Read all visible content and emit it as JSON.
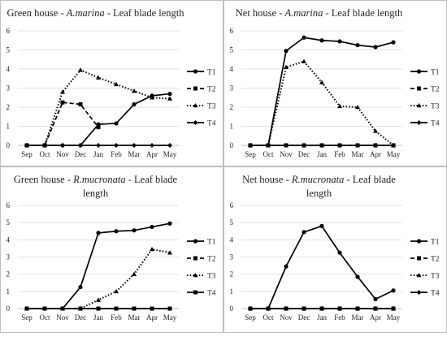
{
  "chart_data": [
    {
      "type": "line",
      "title": [
        "Green house - ",
        "A.marina",
        " - Leaf blade length"
      ],
      "title_italic": [
        false,
        true,
        false
      ],
      "title_line2": "",
      "categories": [
        "Sep",
        "Oct",
        "Nov",
        "Dec",
        "Jan",
        "Feb",
        "Mar",
        "Apr",
        "May"
      ],
      "ylim": [
        0,
        6
      ],
      "yticks": [
        "0",
        "1",
        "2",
        "3",
        "4",
        "5",
        "6"
      ],
      "grid": true,
      "legend": "right",
      "series": [
        {
          "name": "T1",
          "style": "solid",
          "marker": "circle",
          "values": [
            0,
            0,
            0,
            0,
            1.1,
            1.15,
            2.15,
            2.6,
            2.7
          ]
        },
        {
          "name": "T2",
          "style": "dashed",
          "marker": "square",
          "values": [
            0,
            0,
            2.25,
            2.15,
            0.95,
            null,
            null,
            null,
            null
          ]
        },
        {
          "name": "T3",
          "style": "dotted",
          "marker": "triangle",
          "values": [
            0,
            0,
            2.8,
            3.95,
            3.55,
            3.2,
            2.85,
            2.5,
            2.45
          ]
        },
        {
          "name": "T4",
          "style": "solid",
          "marker": "diamond",
          "values": [
            0,
            0,
            0,
            0,
            0,
            0,
            0,
            0,
            0
          ]
        }
      ]
    },
    {
      "type": "line",
      "title": [
        "Net house - ",
        "A.marina",
        " - Leaf blade length"
      ],
      "title_italic": [
        false,
        true,
        false
      ],
      "title_line2": "",
      "categories": [
        "Sep",
        "Oct",
        "Nov",
        "Dec",
        "Jan",
        "Feb",
        "Mar",
        "Apr",
        "May"
      ],
      "ylim": [
        0,
        6
      ],
      "yticks": [
        "0",
        "1",
        "2",
        "3",
        "4",
        "5",
        "6"
      ],
      "grid": true,
      "legend": "right",
      "series": [
        {
          "name": "T1",
          "style": "solid",
          "marker": "circle",
          "values": [
            0,
            0,
            4.95,
            5.65,
            5.5,
            5.45,
            5.25,
            5.15,
            5.4
          ]
        },
        {
          "name": "T2",
          "style": "dashed",
          "marker": "square",
          "values": [
            0,
            0,
            0,
            0,
            0,
            0,
            0,
            0,
            0
          ]
        },
        {
          "name": "T3",
          "style": "dotted",
          "marker": "triangle",
          "values": [
            0,
            0,
            4.1,
            4.4,
            3.3,
            2.05,
            2.0,
            0.75,
            0
          ]
        },
        {
          "name": "T4",
          "style": "solid",
          "marker": "diamond",
          "values": [
            0,
            0,
            0,
            0,
            0,
            0,
            0,
            0,
            0
          ]
        }
      ]
    },
    {
      "type": "line",
      "title": [
        "Green house - ",
        "R.mucronata",
        " - Leaf blade"
      ],
      "title_italic": [
        false,
        true,
        false
      ],
      "title_line2": "length",
      "categories": [
        "Sep",
        "Oct",
        "Nov",
        "Dec",
        "Jan",
        "Feb",
        "Mar",
        "Apr",
        "May"
      ],
      "ylim": [
        0,
        6
      ],
      "yticks": [
        "0",
        "1",
        "2",
        "3",
        "4",
        "5",
        "6"
      ],
      "grid": true,
      "legend": "right",
      "series": [
        {
          "name": "T1",
          "style": "solid",
          "marker": "circle",
          "values": [
            0,
            0,
            0,
            1.25,
            4.4,
            4.5,
            4.55,
            4.75,
            4.95
          ]
        },
        {
          "name": "T2",
          "style": "dashed",
          "marker": "square",
          "values": [
            0,
            0,
            0,
            0,
            0,
            0,
            0,
            0,
            0
          ]
        },
        {
          "name": "T3",
          "style": "dotted",
          "marker": "triangle",
          "values": [
            0,
            0,
            0,
            0,
            0.5,
            1.0,
            2.0,
            3.45,
            3.25
          ]
        },
        {
          "name": "T4",
          "style": "solid",
          "marker": "square",
          "values": [
            0,
            0,
            0,
            0,
            0,
            0,
            0,
            0,
            0
          ]
        }
      ]
    },
    {
      "type": "line",
      "title": [
        "Net house - ",
        "R.mucronata",
        " - Leaf blade"
      ],
      "title_italic": [
        false,
        true,
        false
      ],
      "title_line2": "length",
      "categories": [
        "Sep",
        "Oct",
        "Nov",
        "Dec",
        "Jan",
        "Feb",
        "Mar",
        "Apr",
        "May"
      ],
      "ylim": [
        0,
        6
      ],
      "yticks": [
        "0",
        "1",
        "2",
        "3",
        "4",
        "5",
        "6"
      ],
      "grid": true,
      "legend": "right",
      "series": [
        {
          "name": "T1",
          "style": "solid",
          "marker": "circle",
          "values": [
            0,
            0,
            2.45,
            4.45,
            4.8,
            3.25,
            1.85,
            0.55,
            1.05
          ]
        },
        {
          "name": "T2",
          "style": "dashed",
          "marker": "square",
          "values": [
            0,
            0,
            0,
            0,
            0,
            0,
            0,
            0,
            0
          ]
        },
        {
          "name": "T3",
          "style": "dotted",
          "marker": "triangle",
          "values": [
            0,
            0,
            0,
            0,
            0,
            0,
            0,
            0,
            0
          ]
        },
        {
          "name": "T4",
          "style": "solid",
          "marker": "diamond",
          "values": [
            0,
            0,
            0,
            0,
            0,
            0,
            0,
            0,
            0
          ]
        }
      ]
    }
  ]
}
